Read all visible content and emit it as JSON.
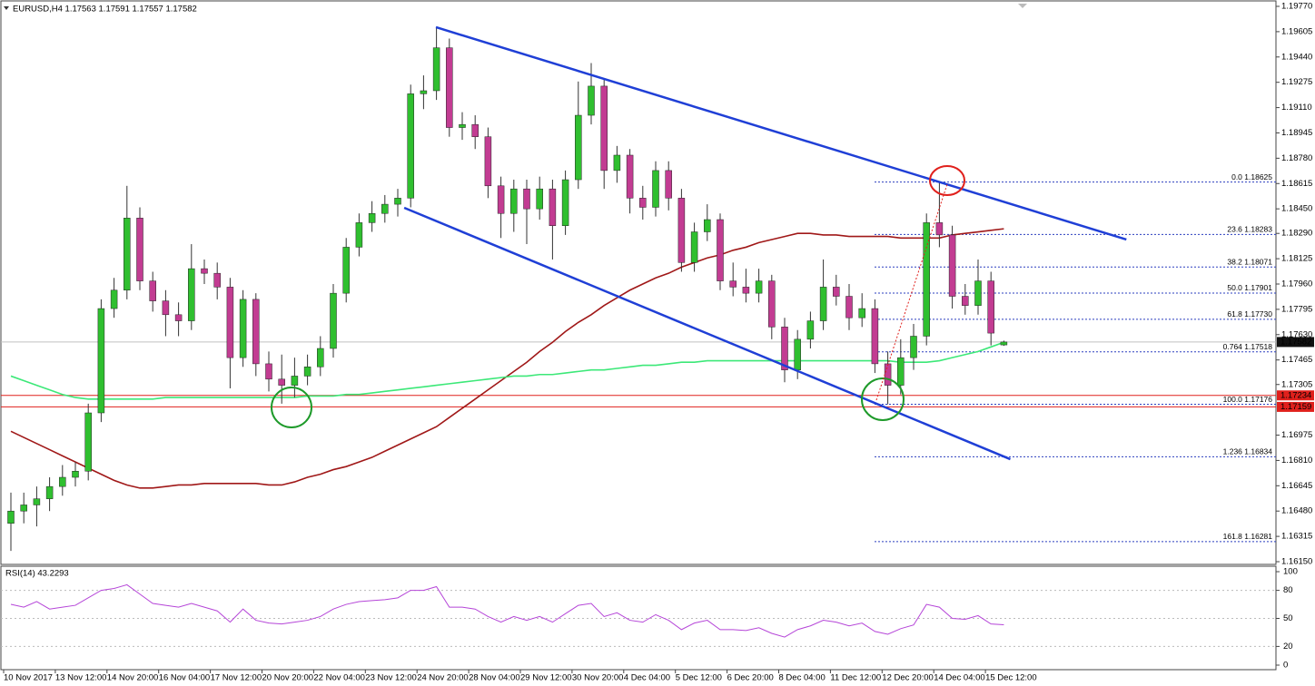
{
  "chart_data": [
    {
      "type": "candlestick",
      "title": "EURUSD,H4 1.17563 1.17591 1.17557 1.17582",
      "up_color": "#2fbf2f",
      "down_color": "#c23c92",
      "wick_color": "#333333",
      "ylim": [
        1.1615,
        1.1977
      ],
      "yticks": [
        {
          "value": 1.1977,
          "label": "1.19770"
        },
        {
          "value": 1.19605,
          "label": "1.19605"
        },
        {
          "value": 1.1944,
          "label": "1.19440"
        },
        {
          "value": 1.19275,
          "label": "1.19275"
        },
        {
          "value": 1.1911,
          "label": "1.19110"
        },
        {
          "value": 1.18945,
          "label": "1.18945"
        },
        {
          "value": 1.1878,
          "label": "1.18780"
        },
        {
          "value": 1.18615,
          "label": "1.18615"
        },
        {
          "value": 1.1845,
          "label": "1.18450"
        },
        {
          "value": 1.1829,
          "label": "1.18290"
        },
        {
          "value": 1.18125,
          "label": "1.18125"
        },
        {
          "value": 1.1796,
          "label": "1.17960"
        },
        {
          "value": 1.17795,
          "label": "1.17795"
        },
        {
          "value": 1.1763,
          "label": "1.17630"
        },
        {
          "value": 1.17465,
          "label": "1.17465"
        },
        {
          "value": 1.17305,
          "label": "1.17305"
        },
        {
          "value": 1.16975,
          "label": "1.16975"
        },
        {
          "value": 1.1681,
          "label": "1.16810"
        },
        {
          "value": 1.16645,
          "label": "1.16645"
        },
        {
          "value": 1.1648,
          "label": "1.16480"
        },
        {
          "value": 1.16315,
          "label": "1.16315"
        },
        {
          "value": 1.1615,
          "label": "1.16150"
        }
      ],
      "xlabels": [
        "10 Nov 2017",
        "13 Nov 12:00",
        "14 Nov 20:00",
        "16 Nov 04:00",
        "17 Nov 12:00",
        "20 Nov 20:00",
        "22 Nov 04:00",
        "23 Nov 12:00",
        "24 Nov 20:00",
        "28 Nov 04:00",
        "29 Nov 12:00",
        "30 Nov 20:00",
        "4 Dec 04:00",
        "5 Dec 12:00",
        "6 Dec 20:00",
        "8 Dec 04:00",
        "11 Dec 12:00",
        "12 Dec 20:00",
        "14 Dec 04:00",
        "15 Dec 12:00"
      ],
      "ohlc": [
        [
          1.164,
          1.166,
          1.1622,
          1.1648
        ],
        [
          1.1648,
          1.166,
          1.164,
          1.1652
        ],
        [
          1.1652,
          1.1664,
          1.1638,
          1.1656
        ],
        [
          1.1656,
          1.167,
          1.1648,
          1.1664
        ],
        [
          1.1664,
          1.1678,
          1.1658,
          1.167
        ],
        [
          1.167,
          1.168,
          1.1664,
          1.1674
        ],
        [
          1.1674,
          1.1718,
          1.1668,
          1.1712
        ],
        [
          1.1712,
          1.1786,
          1.1706,
          1.178
        ],
        [
          1.178,
          1.18,
          1.1774,
          1.1792
        ],
        [
          1.1792,
          1.186,
          1.1786,
          1.1839
        ],
        [
          1.1839,
          1.1846,
          1.1792,
          1.1798
        ],
        [
          1.1798,
          1.1804,
          1.1778,
          1.1785
        ],
        [
          1.1785,
          1.1792,
          1.1762,
          1.1776
        ],
        [
          1.1776,
          1.1784,
          1.1762,
          1.1772
        ],
        [
          1.1772,
          1.1822,
          1.1766,
          1.1806
        ],
        [
          1.1806,
          1.1812,
          1.1796,
          1.1803
        ],
        [
          1.1803,
          1.181,
          1.1786,
          1.1794
        ],
        [
          1.1794,
          1.18,
          1.1728,
          1.1748
        ],
        [
          1.1748,
          1.1792,
          1.1742,
          1.1786
        ],
        [
          1.1786,
          1.179,
          1.1736,
          1.1744
        ],
        [
          1.1744,
          1.1752,
          1.1726,
          1.1734
        ],
        [
          1.1734,
          1.175,
          1.1718,
          1.173
        ],
        [
          1.173,
          1.1748,
          1.1722,
          1.1736
        ],
        [
          1.1736,
          1.175,
          1.173,
          1.1742
        ],
        [
          1.1742,
          1.1762,
          1.1736,
          1.1754
        ],
        [
          1.1754,
          1.1796,
          1.1748,
          1.179
        ],
        [
          1.179,
          1.1826,
          1.1784,
          1.182
        ],
        [
          1.182,
          1.1842,
          1.1814,
          1.1836
        ],
        [
          1.1836,
          1.185,
          1.183,
          1.1842
        ],
        [
          1.1842,
          1.1854,
          1.1836,
          1.1848
        ],
        [
          1.1848,
          1.1858,
          1.184,
          1.1852
        ],
        [
          1.1852,
          1.1926,
          1.1846,
          1.192
        ],
        [
          1.192,
          1.1932,
          1.191,
          1.1922
        ],
        [
          1.1922,
          1.1963,
          1.1916,
          1.195
        ],
        [
          1.195,
          1.1956,
          1.1892,
          1.1898
        ],
        [
          1.1898,
          1.1908,
          1.189,
          1.19
        ],
        [
          1.19,
          1.1906,
          1.1884,
          1.1892
        ],
        [
          1.1892,
          1.1898,
          1.1852,
          1.186
        ],
        [
          1.186,
          1.1866,
          1.1826,
          1.1842
        ],
        [
          1.1842,
          1.1864,
          1.183,
          1.1858
        ],
        [
          1.1858,
          1.1864,
          1.1822,
          1.1845
        ],
        [
          1.1845,
          1.1866,
          1.1838,
          1.1858
        ],
        [
          1.1858,
          1.1864,
          1.1812,
          1.1834
        ],
        [
          1.1834,
          1.187,
          1.1828,
          1.1864
        ],
        [
          1.1864,
          1.1928,
          1.1858,
          1.1906
        ],
        [
          1.1906,
          1.194,
          1.19,
          1.1925
        ],
        [
          1.1925,
          1.193,
          1.1858,
          1.187
        ],
        [
          1.187,
          1.1886,
          1.1862,
          1.188
        ],
        [
          1.188,
          1.1884,
          1.1842,
          1.1852
        ],
        [
          1.1852,
          1.186,
          1.1838,
          1.1846
        ],
        [
          1.1846,
          1.1876,
          1.184,
          1.187
        ],
        [
          1.187,
          1.1876,
          1.1844,
          1.1852
        ],
        [
          1.1852,
          1.1858,
          1.1804,
          1.181
        ],
        [
          1.181,
          1.1836,
          1.1804,
          1.183
        ],
        [
          1.183,
          1.1848,
          1.1824,
          1.1838
        ],
        [
          1.1838,
          1.1842,
          1.1792,
          1.1798
        ],
        [
          1.1798,
          1.181,
          1.1788,
          1.1794
        ],
        [
          1.1794,
          1.1806,
          1.1784,
          1.179
        ],
        [
          1.179,
          1.1806,
          1.1784,
          1.1798
        ],
        [
          1.1798,
          1.1802,
          1.176,
          1.1768
        ],
        [
          1.1768,
          1.1774,
          1.1732,
          1.174
        ],
        [
          1.174,
          1.1766,
          1.1734,
          1.176
        ],
        [
          1.176,
          1.1778,
          1.1754,
          1.1772
        ],
        [
          1.1772,
          1.1812,
          1.1766,
          1.1794
        ],
        [
          1.1794,
          1.1802,
          1.1782,
          1.1788
        ],
        [
          1.1788,
          1.1796,
          1.1766,
          1.1774
        ],
        [
          1.1774,
          1.179,
          1.1768,
          1.178
        ],
        [
          1.178,
          1.1786,
          1.1738,
          1.1744
        ],
        [
          1.1744,
          1.1752,
          1.17176,
          1.173
        ],
        [
          1.173,
          1.176,
          1.1724,
          1.1748
        ],
        [
          1.1748,
          1.177,
          1.174,
          1.1762
        ],
        [
          1.1762,
          1.1842,
          1.1756,
          1.1836
        ],
        [
          1.1836,
          1.18625,
          1.182,
          1.1828
        ],
        [
          1.1828,
          1.1834,
          1.178,
          1.1788
        ],
        [
          1.1788,
          1.1796,
          1.1776,
          1.1782
        ],
        [
          1.1782,
          1.1812,
          1.1776,
          1.1798
        ],
        [
          1.1798,
          1.1804,
          1.1756,
          1.1764
        ],
        [
          1.17563,
          1.17591,
          1.17557,
          1.17582
        ]
      ],
      "series": [
        {
          "color": "#a01818",
          "values": [
            1.17,
            1.1696,
            1.1692,
            1.1688,
            1.1684,
            1.168,
            1.1676,
            1.1672,
            1.1668,
            1.1665,
            1.1663,
            1.1663,
            1.1664,
            1.1665,
            1.1665,
            1.1666,
            1.1666,
            1.1666,
            1.1666,
            1.1666,
            1.1665,
            1.1665,
            1.1667,
            1.167,
            1.1672,
            1.1675,
            1.1677,
            1.168,
            1.1683,
            1.1687,
            1.1691,
            1.1695,
            1.1699,
            1.1703,
            1.1709,
            1.1715,
            1.1721,
            1.1727,
            1.1733,
            1.1739,
            1.1745,
            1.1752,
            1.1758,
            1.1765,
            1.1771,
            1.1776,
            1.1782,
            1.1787,
            1.1792,
            1.1796,
            1.18,
            1.1803,
            1.1807,
            1.181,
            1.1813,
            1.1815,
            1.1818,
            1.182,
            1.1823,
            1.1825,
            1.1827,
            1.1829,
            1.1829,
            1.1828,
            1.1828,
            1.1827,
            1.1827,
            1.1827,
            1.1827,
            1.1826,
            1.1826,
            1.1826,
            1.1826,
            1.1828,
            1.1829,
            1.183,
            1.1831,
            1.1832
          ]
        },
        {
          "color": "#3ce878",
          "values": [
            1.1736,
            1.1733,
            1.173,
            1.1727,
            1.1724,
            1.1722,
            1.1721,
            1.1721,
            1.1721,
            1.1721,
            1.1721,
            1.1721,
            1.1722,
            1.1722,
            1.1722,
            1.1722,
            1.1722,
            1.1722,
            1.1722,
            1.1722,
            1.1722,
            1.1722,
            1.1722,
            1.1723,
            1.1723,
            1.1723,
            1.1724,
            1.1724,
            1.1725,
            1.1726,
            1.1727,
            1.1728,
            1.1729,
            1.173,
            1.1731,
            1.1732,
            1.1733,
            1.1734,
            1.1735,
            1.1736,
            1.1736,
            1.1737,
            1.1737,
            1.1738,
            1.1739,
            1.174,
            1.174,
            1.1741,
            1.1742,
            1.1743,
            1.1743,
            1.1744,
            1.1745,
            1.1745,
            1.1746,
            1.1746,
            1.1746,
            1.1746,
            1.1746,
            1.1746,
            1.1746,
            1.1746,
            1.1746,
            1.1746,
            1.1746,
            1.1746,
            1.1746,
            1.1746,
            1.1746,
            1.1745,
            1.1745,
            1.1745,
            1.1746,
            1.1748,
            1.175,
            1.1752,
            1.1755,
            1.1758
          ]
        }
      ],
      "trendlines": [
        {
          "color": "#1f3fd6",
          "x": [
            32.96,
            86.5
          ],
          "y": [
            1.19634,
            1.1825
          ]
        },
        {
          "color": "#1f3fd6",
          "x": [
            30.5,
            77.5
          ],
          "y": [
            1.18457,
            1.16818
          ]
        }
      ],
      "fib_color": "#2b3fbf",
      "fib": [
        {
          "value": 1.18625,
          "label": "0.0 1.18625"
        },
        {
          "value": 1.18283,
          "label": "23.6 1.18283"
        },
        {
          "value": 1.18071,
          "label": "38.2 1.18071"
        },
        {
          "value": 1.17901,
          "label": "50.0 1.17901"
        },
        {
          "value": 1.1773,
          "label": "61.8 1.17730"
        },
        {
          "value": 1.17518,
          "label": "0.764 1.17518"
        },
        {
          "value": 1.17176,
          "label": "100.0 1.17176"
        },
        {
          "value": 1.16834,
          "label": "1.236 1.16834"
        },
        {
          "value": 1.16281,
          "label": "161.8 1.16281"
        }
      ],
      "hlines": [
        {
          "value": 1.17582,
          "label": "1.17582",
          "color": "#c0c0c0",
          "tag_color": "#111111"
        },
        {
          "value": 1.17234,
          "label": "1.17234",
          "color": "#e0201c",
          "tag_color": "#e0201c"
        },
        {
          "value": 1.17159,
          "label": "1.17159",
          "color": "#e0201c",
          "tag_color": "#e0201c"
        }
      ]
    },
    {
      "type": "line",
      "title": "RSI(14) 43.2293",
      "ylim": [
        0,
        100
      ],
      "yticks": [
        0,
        20,
        50,
        80,
        100
      ],
      "series": [
        {
          "color": "#b545d8",
          "values": [
            65,
            62,
            68,
            60,
            62,
            64,
            72,
            80,
            82,
            86,
            76,
            66,
            64,
            62,
            66,
            62,
            58,
            46,
            60,
            48,
            45,
            44,
            46,
            48,
            52,
            60,
            65,
            68,
            69,
            70,
            72,
            80,
            80,
            84,
            62,
            62,
            60,
            52,
            46,
            52,
            48,
            52,
            46,
            55,
            64,
            66,
            52,
            56,
            48,
            46,
            54,
            48,
            38,
            45,
            48,
            38,
            38,
            37,
            40,
            34,
            30,
            38,
            42,
            48,
            46,
            42,
            45,
            36,
            33,
            39,
            43,
            65,
            62,
            50,
            49,
            53,
            44,
            43.2293
          ]
        }
      ]
    }
  ]
}
